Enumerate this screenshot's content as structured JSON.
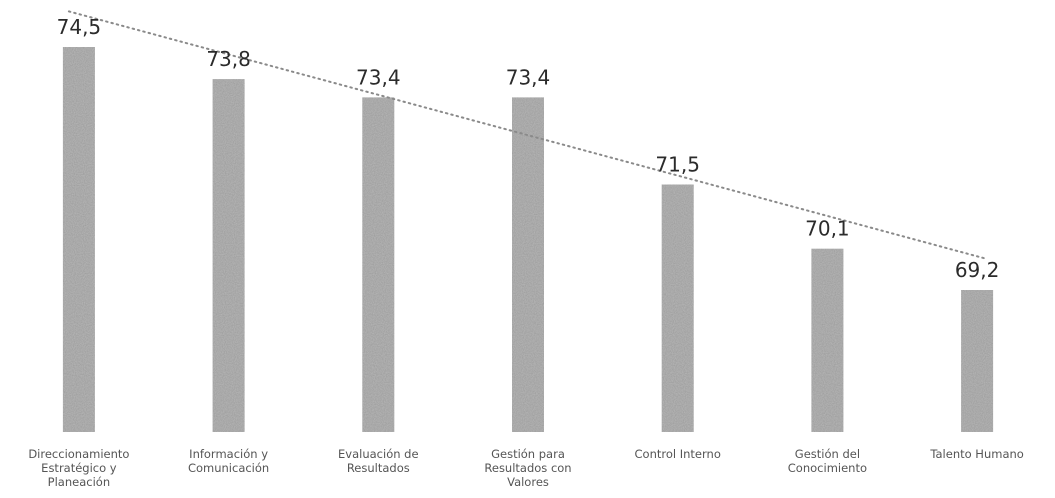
{
  "chart_data": {
    "type": "bar",
    "categories": [
      [
        "Direccionamiento",
        "Estratégico y",
        "Planeación"
      ],
      [
        "Información y",
        "Comunicación"
      ],
      [
        "Evaluación de",
        "Resultados"
      ],
      [
        "Gestión para",
        "Resultados con",
        "Valores"
      ],
      [
        "Control Interno"
      ],
      [
        "Gestión del",
        "Conocimiento"
      ],
      [
        "Talento Humano"
      ]
    ],
    "values": [
      74.5,
      73.8,
      73.4,
      73.4,
      71.5,
      70.1,
      69.2
    ],
    "value_labels": [
      "74,5",
      "73,8",
      "73,4",
      "73,4",
      "71,5",
      "70,1",
      "69,2"
    ],
    "trendline": {
      "style": "dotted",
      "type": "linear"
    },
    "grid": false,
    "colors": {
      "bar": "#b9b9b9",
      "trendline": "#8a8a8a",
      "text": "#2b2b2b"
    }
  }
}
